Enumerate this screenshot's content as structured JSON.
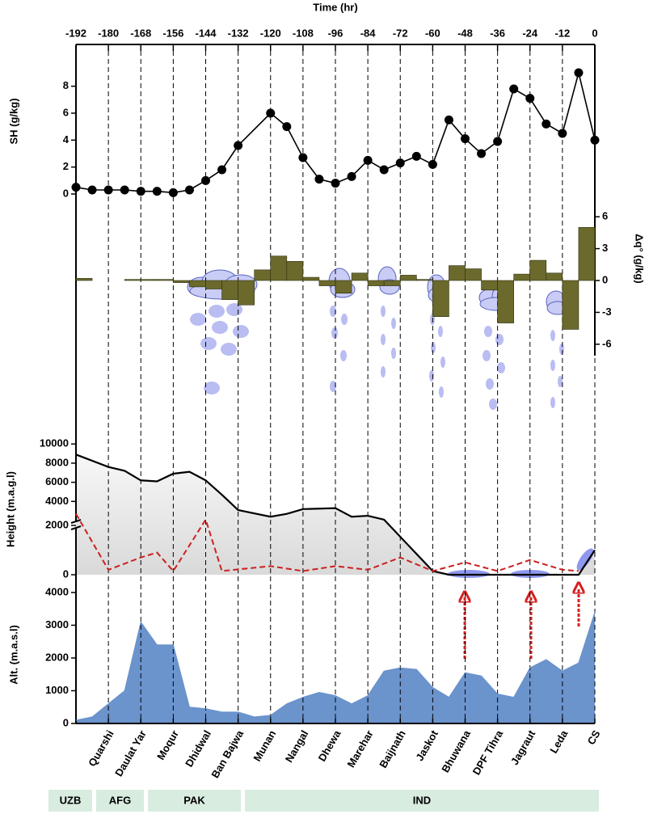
{
  "chart_data": [
    {
      "type": "line",
      "xlabel": "Time (hr)",
      "xlim": [
        -192,
        0
      ],
      "xticks": [
        -192,
        -180,
        -168,
        -156,
        -144,
        -132,
        -120,
        -108,
        -96,
        -84,
        -72,
        -60,
        -48,
        -36,
        -24,
        -12,
        0
      ],
      "ylabel": "SH (g/kg)",
      "ylim": [
        -0.9,
        10.8
      ],
      "yticks": [
        0,
        2,
        4,
        6,
        8
      ],
      "color": "#000000",
      "x": [
        -192,
        -186,
        -180,
        -174,
        -168,
        -162,
        -156,
        -150,
        -144,
        -138,
        -132,
        -120,
        -114,
        -108,
        -102,
        -96,
        -90,
        -84,
        -78,
        -72,
        -66,
        -60,
        -54,
        -48,
        -42,
        -36,
        -30,
        -24,
        -18,
        -12,
        -6,
        0
      ],
      "values": [
        0.5,
        0.3,
        0.3,
        0.3,
        0.2,
        0.2,
        0.1,
        0.3,
        1.0,
        1.8,
        3.6,
        6.0,
        5.0,
        2.7,
        1.1,
        0.8,
        1.3,
        2.5,
        1.8,
        2.3,
        2.8,
        2.2,
        5.5,
        4.1,
        3.0,
        3.9,
        7.8,
        7.1,
        5.2,
        4.5,
        9.0,
        4.0
      ]
    },
    {
      "type": "bar",
      "ylabel": "Δq° (g/kg)",
      "ylim": [
        -7,
        7
      ],
      "yticks": [
        6,
        3,
        0,
        -3,
        -6
      ],
      "color": "#6b6a2c",
      "x": [
        -189,
        -183,
        -177,
        -171,
        -165,
        -159,
        -153,
        -147,
        -141,
        -135,
        -129,
        -123,
        -117,
        -111,
        -105,
        -99,
        -93,
        -87,
        -81,
        -75,
        -69,
        -63,
        -57,
        -51,
        -45,
        -39,
        -33,
        -27,
        -21,
        -15,
        -9,
        -3
      ],
      "values": [
        0.2,
        0,
        0,
        0.1,
        0.1,
        0.1,
        -0.2,
        -0.6,
        -0.8,
        -1.8,
        -2.3,
        1.0,
        2.3,
        1.8,
        0.3,
        -0.5,
        -1.2,
        0.7,
        -0.5,
        -0.5,
        0.5,
        0.1,
        -3.4,
        1.4,
        1.1,
        -0.9,
        -4.0,
        0.6,
        1.9,
        0.7,
        -4.6,
        5.0
      ]
    },
    {
      "type": "line",
      "ylabel": "Height (m.a.g.l)",
      "ylim": [
        0,
        10700
      ],
      "axis_break": 2000,
      "yticks": [
        0,
        2000,
        4000,
        6000,
        8000,
        10000
      ],
      "series": [
        {
          "color": "#000000",
          "style": "solid",
          "x": [
            -192,
            -180,
            -174,
            -168,
            -162,
            -156,
            -150,
            -144,
            -138,
            -132,
            -120,
            -114,
            -108,
            -96,
            -90,
            -84,
            -78,
            -60,
            -54,
            -6,
            0
          ],
          "values": [
            8900,
            7600,
            7200,
            6200,
            6100,
            6900,
            7100,
            6200,
            4700,
            3100,
            2400,
            2700,
            3200,
            3300,
            2400,
            2500,
            2100,
            150,
            0,
            0,
            1000
          ]
        },
        {
          "color": "#cc2020",
          "style": "dashed",
          "x": [
            -192,
            -180,
            -168,
            -162,
            -156,
            -144,
            -138,
            -120,
            -108,
            -96,
            -84,
            -72,
            -60,
            -48,
            -36,
            -24,
            -12,
            -6
          ],
          "values": [
            2700,
            200,
            700,
            900,
            150,
            2100,
            150,
            350,
            150,
            350,
            200,
            700,
            150,
            500,
            150,
            600,
            200,
            150
          ]
        }
      ]
    },
    {
      "type": "area",
      "ylabel": "Alt. (m.a.s.l)",
      "ylim": [
        0,
        4320
      ],
      "yticks": [
        0,
        1000,
        2000,
        3000,
        4000
      ],
      "color": "#6b93cc",
      "x": [
        -192,
        -186,
        -180,
        -174,
        -168,
        -162,
        -156,
        -150,
        -144,
        -138,
        -132,
        -126,
        -120,
        -114,
        -108,
        -102,
        -96,
        -90,
        -84,
        -78,
        -72,
        -66,
        -60,
        -54,
        -48,
        -42,
        -36,
        -30,
        -24,
        -18,
        -12,
        -6,
        0
      ],
      "values": [
        100,
        200,
        600,
        1000,
        3100,
        2400,
        2400,
        500,
        450,
        350,
        350,
        200,
        250,
        600,
        800,
        950,
        850,
        600,
        850,
        1600,
        1700,
        1650,
        1100,
        800,
        1550,
        1450,
        900,
        800,
        1700,
        1950,
        1600,
        1850,
        3400
      ]
    }
  ],
  "locations": {
    "names": [
      "Quarshi",
      "Daulat Yar",
      "Moqur",
      "Dhidwal",
      "Ban Bajwa",
      "Munan",
      "Nangal",
      "Dhewa",
      "Marehar",
      "Baijnath",
      "Jaskot",
      "Bhuwana",
      "DPF Tihra",
      "Jagraut",
      "Leda",
      "CS"
    ],
    "x": [
      -180,
      -168,
      -156,
      -144,
      -132,
      -120,
      -108,
      -96,
      -84,
      -72,
      -60,
      -48,
      -36,
      -24,
      -12,
      0
    ]
  },
  "countries": [
    "UZB",
    "AFG",
    "PAK",
    "IND"
  ]
}
